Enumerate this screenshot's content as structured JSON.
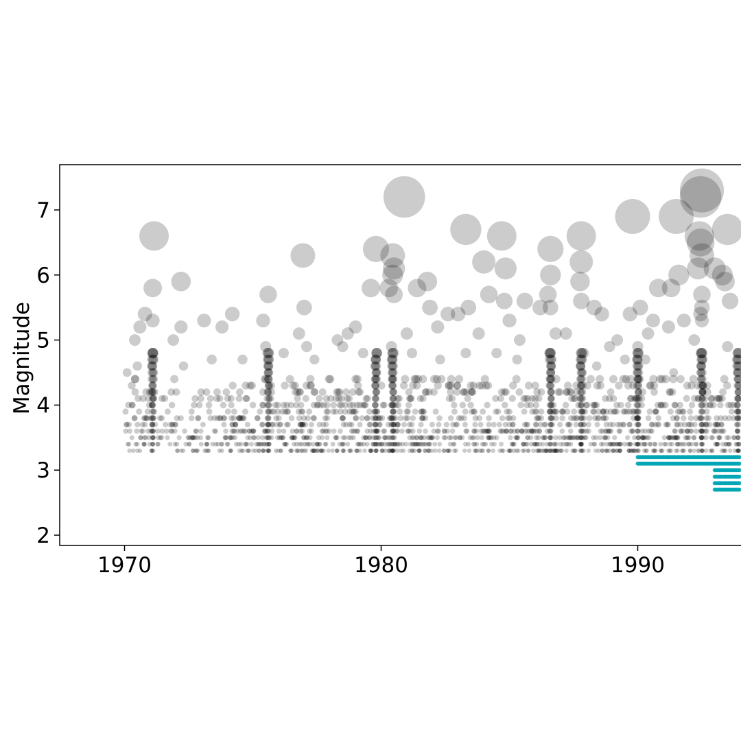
{
  "chart_data": {
    "type": "scatter",
    "title": "",
    "xlabel": "",
    "ylabel": "Magnitude",
    "xlim": [
      1967.5,
      1994.0
    ],
    "ylim": [
      1.85,
      7.7
    ],
    "x_ticks": [
      1970,
      1980,
      1990
    ],
    "x_tick_labels": [
      "1970",
      "1980",
      "1990"
    ],
    "y_ticks": [
      2,
      3,
      4,
      5,
      6,
      7
    ],
    "y_tick_labels": [
      "2",
      "3",
      "4",
      "5",
      "6",
      "7"
    ],
    "grid": false,
    "legend": "none",
    "marker_size_encodes": "magnitude",
    "series": [
      {
        "color": "#000000",
        "opacity": 0.2,
        "description_of_density": "dense band 3.3-4.2 for 1970-1994",
        "points": [
          [
            1971.15,
            6.6
          ],
          [
            1971.1,
            5.8
          ],
          [
            1972.2,
            5.9
          ],
          [
            1976.95,
            6.3
          ],
          [
            1979.8,
            6.4
          ],
          [
            1980.45,
            6.3
          ],
          [
            1980.5,
            6.1
          ],
          [
            1980.45,
            6.0
          ],
          [
            1980.9,
            7.2
          ],
          [
            1983.3,
            6.7
          ],
          [
            1984.0,
            6.2
          ],
          [
            1984.7,
            6.6
          ],
          [
            1984.85,
            6.1
          ],
          [
            1986.6,
            6.4
          ],
          [
            1986.6,
            6.0
          ],
          [
            1987.8,
            6.6
          ],
          [
            1987.8,
            6.2
          ],
          [
            1987.75,
            5.9
          ],
          [
            1989.8,
            6.9
          ],
          [
            1991.5,
            6.9
          ],
          [
            1992.5,
            7.3
          ],
          [
            1992.45,
            7.2
          ],
          [
            1992.4,
            6.6
          ],
          [
            1992.45,
            6.5
          ],
          [
            1992.5,
            6.3
          ],
          [
            1992.35,
            6.1
          ],
          [
            1991.6,
            6.0
          ],
          [
            1993.5,
            6.7
          ],
          [
            1993.0,
            6.1
          ],
          [
            1993.3,
            6.0
          ],
          [
            1993.4,
            5.9
          ],
          [
            1991.3,
            5.8
          ],
          [
            1990.8,
            5.8
          ],
          [
            1970.8,
            5.4
          ],
          [
            1970.6,
            5.2
          ],
          [
            1971.1,
            5.3
          ],
          [
            1975.6,
            5.7
          ],
          [
            1975.4,
            5.3
          ],
          [
            1977.0,
            5.5
          ],
          [
            1979.6,
            5.8
          ],
          [
            1980.3,
            5.8
          ],
          [
            1980.5,
            5.7
          ],
          [
            1981.4,
            5.8
          ],
          [
            1981.8,
            5.9
          ],
          [
            1981.9,
            5.5
          ],
          [
            1982.6,
            5.4
          ],
          [
            1983.0,
            5.4
          ],
          [
            1983.4,
            5.5
          ],
          [
            1984.2,
            5.7
          ],
          [
            1984.8,
            5.6
          ],
          [
            1985.6,
            5.6
          ],
          [
            1986.2,
            5.5
          ],
          [
            1986.6,
            5.5
          ],
          [
            1986.5,
            5.7
          ],
          [
            1987.8,
            5.6
          ],
          [
            1988.3,
            5.5
          ],
          [
            1989.7,
            5.4
          ],
          [
            1990.1,
            5.5
          ],
          [
            1990.6,
            5.3
          ],
          [
            1991.8,
            5.3
          ],
          [
            1992.5,
            5.7
          ],
          [
            1992.5,
            5.5
          ],
          [
            1992.45,
            5.4
          ],
          [
            1992.5,
            5.3
          ],
          [
            1993.6,
            5.6
          ],
          [
            1974.2,
            5.4
          ],
          [
            1973.8,
            5.2
          ],
          [
            1973.1,
            5.3
          ],
          [
            1972.2,
            5.2
          ],
          [
            1979.0,
            5.2
          ],
          [
            1978.7,
            5.1
          ],
          [
            1978.3,
            5.0
          ],
          [
            1982.2,
            5.2
          ],
          [
            1983.8,
            5.1
          ],
          [
            1985.0,
            5.3
          ],
          [
            1986.8,
            5.1
          ],
          [
            1988.6,
            5.4
          ],
          [
            1989.2,
            5.0
          ],
          [
            1990.4,
            5.1
          ],
          [
            1991.2,
            5.2
          ],
          [
            1970.4,
            5.0
          ],
          [
            1971.9,
            5.0
          ],
          [
            1976.8,
            5.1
          ],
          [
            1977.1,
            4.9
          ],
          [
            1981.0,
            5.1
          ],
          [
            1985.4,
            5.0
          ],
          [
            1987.2,
            5.1
          ],
          [
            1988.9,
            4.9
          ],
          [
            1990.0,
            4.9
          ],
          [
            1992.2,
            5.0
          ],
          [
            1970.1,
            4.5
          ],
          [
            1970.5,
            4.6
          ],
          [
            1971.1,
            4.8
          ],
          [
            1972.3,
            4.6
          ],
          [
            1973.4,
            4.7
          ],
          [
            1974.6,
            4.7
          ],
          [
            1975.5,
            4.9
          ],
          [
            1976.2,
            4.8
          ],
          [
            1977.4,
            4.7
          ],
          [
            1978.5,
            4.9
          ],
          [
            1979.3,
            4.8
          ],
          [
            1980.4,
            4.9
          ],
          [
            1981.2,
            4.8
          ],
          [
            1982.3,
            4.7
          ],
          [
            1983.3,
            4.8
          ],
          [
            1984.5,
            4.8
          ],
          [
            1985.3,
            4.7
          ],
          [
            1986.6,
            4.8
          ],
          [
            1987.9,
            4.8
          ],
          [
            1988.4,
            4.6
          ],
          [
            1989.5,
            4.7
          ],
          [
            1990.3,
            4.7
          ],
          [
            1991.4,
            4.5
          ],
          [
            1992.5,
            4.8
          ],
          [
            1993.5,
            4.9
          ]
        ]
      },
      {
        "color": "#00a6b4",
        "opacity": 0.9,
        "description_of_density": "horizontal bands at 2.7-3.2 for 1990-1994",
        "bands": [
          {
            "y": 3.2,
            "x_start": 1990.0,
            "x_end": 1994.0
          },
          {
            "y": 3.1,
            "x_start": 1990.0,
            "x_end": 1994.0
          },
          {
            "y": 3.0,
            "x_start": 1993.0,
            "x_end": 1994.0
          },
          {
            "y": 2.9,
            "x_start": 1993.0,
            "x_end": 1994.0
          },
          {
            "y": 2.8,
            "x_start": 1993.0,
            "x_end": 1994.0
          },
          {
            "y": 2.7,
            "x_start": 1993.0,
            "x_end": 1994.0
          }
        ]
      }
    ],
    "dense_columns_x": [
      1971.1,
      1975.6,
      1979.8,
      1980.45,
      1986.6,
      1987.8,
      1990.0,
      1992.5,
      1993.9
    ],
    "dense_band_years": [
      1970.0,
      1994.0
    ]
  }
}
